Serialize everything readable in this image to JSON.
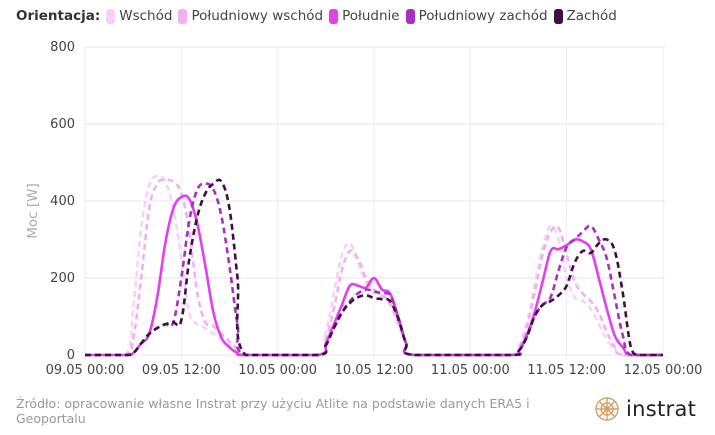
{
  "legend": {
    "title": "Orientacja:"
  },
  "chart_data": {
    "type": "line",
    "title": "",
    "xlabel": "",
    "ylabel": "Moc [W]",
    "ylim": [
      0,
      800
    ],
    "yticks": [
      "0",
      "200",
      "400",
      "600",
      "800"
    ],
    "xlim": [
      "09.05 00:00",
      "12.05 00:00"
    ],
    "xticks": [
      "09.05 00:00",
      "09.05 12:00",
      "10.05 00:00",
      "10.05 12:00",
      "11.05 00:00",
      "11.05 12:00",
      "12.05 00:00"
    ],
    "grid": true,
    "legend_position": "top-left",
    "series": [
      {
        "name": "Wschód",
        "color": "#f9d0f9",
        "dashed": true,
        "points": [
          [
            "09.05 00:00",
            0
          ],
          [
            "09.05 05:00",
            0
          ],
          [
            "09.05 06:00",
            120
          ],
          [
            "09.05 07:00",
            330
          ],
          [
            "09.05 08:00",
            440
          ],
          [
            "09.05 09:00",
            465
          ],
          [
            "09.05 10:00",
            450
          ],
          [
            "09.05 11:00",
            380
          ],
          [
            "09.05 12:00",
            250
          ],
          [
            "09.05 13:00",
            110
          ],
          [
            "09.05 14:00",
            80
          ],
          [
            "09.05 15:00",
            70
          ],
          [
            "09.05 16:00",
            55
          ],
          [
            "09.05 17:00",
            40
          ],
          [
            "09.05 18:00",
            25
          ],
          [
            "09.05 19:00",
            10
          ],
          [
            "09.05 20:00",
            0
          ],
          [
            "10.05 05:00",
            0
          ],
          [
            "10.05 06:00",
            60
          ],
          [
            "10.05 07:00",
            160
          ],
          [
            "10.05 08:00",
            260
          ],
          [
            "10.05 09:00",
            290
          ],
          [
            "10.05 10:00",
            240
          ],
          [
            "10.05 11:00",
            190
          ],
          [
            "10.05 12:00",
            165
          ],
          [
            "10.05 13:00",
            150
          ],
          [
            "10.05 14:00",
            130
          ],
          [
            "10.05 15:00",
            80
          ],
          [
            "10.05 16:00",
            30
          ],
          [
            "10.05 17:00",
            0
          ],
          [
            "11.05 05:00",
            0
          ],
          [
            "11.05 06:00",
            20
          ],
          [
            "11.05 07:00",
            80
          ],
          [
            "11.05 08:00",
            180
          ],
          [
            "11.05 09:00",
            280
          ],
          [
            "11.05 10:00",
            335
          ],
          [
            "11.05 11:00",
            300
          ],
          [
            "11.05 12:00",
            200
          ],
          [
            "11.05 13:00",
            150
          ],
          [
            "11.05 14:00",
            140
          ],
          [
            "11.05 15:00",
            120
          ],
          [
            "11.05 16:00",
            80
          ],
          [
            "11.05 17:00",
            40
          ],
          [
            "11.05 18:00",
            15
          ],
          [
            "11.05 19:00",
            0
          ],
          [
            "12.05 00:00",
            0
          ]
        ]
      },
      {
        "name": "Południowy wschód",
        "color": "#f2b0f2",
        "dashed": true,
        "points": [
          [
            "09.05 00:00",
            0
          ],
          [
            "09.05 05:00",
            0
          ],
          [
            "09.05 06:00",
            40
          ],
          [
            "09.05 07:00",
            200
          ],
          [
            "09.05 08:00",
            380
          ],
          [
            "09.05 09:00",
            445
          ],
          [
            "09.05 10:00",
            455
          ],
          [
            "09.05 11:00",
            450
          ],
          [
            "09.05 12:00",
            420
          ],
          [
            "09.05 13:00",
            320
          ],
          [
            "09.05 14:00",
            160
          ],
          [
            "09.05 15:00",
            85
          ],
          [
            "09.05 16:00",
            75
          ],
          [
            "09.05 17:00",
            55
          ],
          [
            "09.05 18:00",
            35
          ],
          [
            "09.05 19:00",
            15
          ],
          [
            "09.05 20:00",
            0
          ],
          [
            "10.05 05:00",
            0
          ],
          [
            "10.05 06:00",
            40
          ],
          [
            "10.05 07:00",
            120
          ],
          [
            "10.05 08:00",
            220
          ],
          [
            "10.05 09:00",
            270
          ],
          [
            "10.05 10:00",
            250
          ],
          [
            "10.05 11:00",
            200
          ],
          [
            "10.05 12:00",
            170
          ],
          [
            "10.05 13:00",
            155
          ],
          [
            "10.05 14:00",
            135
          ],
          [
            "10.05 15:00",
            85
          ],
          [
            "10.05 16:00",
            30
          ],
          [
            "10.05 17:00",
            0
          ],
          [
            "11.05 05:00",
            0
          ],
          [
            "11.05 06:00",
            15
          ],
          [
            "11.05 07:00",
            70
          ],
          [
            "11.05 08:00",
            160
          ],
          [
            "11.05 09:00",
            260
          ],
          [
            "11.05 10:00",
            320
          ],
          [
            "11.05 11:00",
            330
          ],
          [
            "11.05 12:00",
            260
          ],
          [
            "11.05 13:00",
            190
          ],
          [
            "11.05 14:00",
            160
          ],
          [
            "11.05 15:00",
            140
          ],
          [
            "11.05 16:00",
            110
          ],
          [
            "11.05 17:00",
            60
          ],
          [
            "11.05 18:00",
            20
          ],
          [
            "11.05 19:00",
            0
          ],
          [
            "12.05 00:00",
            0
          ]
        ]
      },
      {
        "name": "Południe",
        "color": "#e040f0",
        "dashed": false,
        "points": [
          [
            "09.05 00:00",
            0
          ],
          [
            "09.05 05:00",
            0
          ],
          [
            "09.05 06:00",
            5
          ],
          [
            "09.05 07:00",
            30
          ],
          [
            "09.05 08:00",
            55
          ],
          [
            "09.05 09:00",
            150
          ],
          [
            "09.05 10:00",
            290
          ],
          [
            "09.05 11:00",
            380
          ],
          [
            "09.05 12:00",
            410
          ],
          [
            "09.05 13:00",
            405
          ],
          [
            "09.05 14:00",
            340
          ],
          [
            "09.05 15:00",
            230
          ],
          [
            "09.05 16:00",
            110
          ],
          [
            "09.05 17:00",
            45
          ],
          [
            "09.05 18:00",
            20
          ],
          [
            "09.05 19:00",
            5
          ],
          [
            "09.05 20:00",
            0
          ],
          [
            "10.05 05:00",
            0
          ],
          [
            "10.05 06:00",
            30
          ],
          [
            "10.05 07:00",
            80
          ],
          [
            "10.05 08:00",
            130
          ],
          [
            "10.05 09:00",
            180
          ],
          [
            "10.05 10:00",
            180
          ],
          [
            "10.05 11:00",
            175
          ],
          [
            "10.05 12:00",
            200
          ],
          [
            "10.05 13:00",
            170
          ],
          [
            "10.05 14:00",
            160
          ],
          [
            "10.05 15:00",
            100
          ],
          [
            "10.05 16:00",
            30
          ],
          [
            "10.05 17:00",
            0
          ],
          [
            "11.05 05:00",
            0
          ],
          [
            "11.05 06:00",
            10
          ],
          [
            "11.05 07:00",
            50
          ],
          [
            "11.05 08:00",
            110
          ],
          [
            "11.05 09:00",
            190
          ],
          [
            "11.05 10:00",
            270
          ],
          [
            "11.05 11:00",
            275
          ],
          [
            "11.05 12:00",
            285
          ],
          [
            "11.05 13:00",
            300
          ],
          [
            "11.05 14:00",
            295
          ],
          [
            "11.05 15:00",
            275
          ],
          [
            "11.05 16:00",
            200
          ],
          [
            "11.05 17:00",
            120
          ],
          [
            "11.05 18:00",
            50
          ],
          [
            "11.05 19:00",
            20
          ],
          [
            "11.05 20:00",
            0
          ],
          [
            "12.05 00:00",
            0
          ]
        ]
      },
      {
        "name": "Południowy zachód",
        "color": "#a830c0",
        "dashed": true,
        "points": [
          [
            "09.05 00:00",
            0
          ],
          [
            "09.05 05:00",
            0
          ],
          [
            "09.05 06:00",
            5
          ],
          [
            "09.05 07:00",
            30
          ],
          [
            "09.05 08:00",
            55
          ],
          [
            "09.05 09:00",
            70
          ],
          [
            "09.05 10:00",
            80
          ],
          [
            "09.05 11:00",
            85
          ],
          [
            "09.05 12:00",
            200
          ],
          [
            "09.05 13:00",
            350
          ],
          [
            "09.05 14:00",
            430
          ],
          [
            "09.05 15:00",
            445
          ],
          [
            "09.05 16:00",
            430
          ],
          [
            "09.05 17:00",
            360
          ],
          [
            "09.05 18:00",
            230
          ],
          [
            "09.05 19:00",
            80
          ],
          [
            "09.05 20:00",
            0
          ],
          [
            "10.05 05:00",
            0
          ],
          [
            "10.05 06:00",
            25
          ],
          [
            "10.05 07:00",
            70
          ],
          [
            "10.05 08:00",
            110
          ],
          [
            "10.05 09:00",
            140
          ],
          [
            "10.05 10:00",
            160
          ],
          [
            "10.05 11:00",
            170
          ],
          [
            "10.05 12:00",
            165
          ],
          [
            "10.05 13:00",
            160
          ],
          [
            "10.05 14:00",
            155
          ],
          [
            "10.05 15:00",
            100
          ],
          [
            "10.05 16:00",
            30
          ],
          [
            "10.05 17:00",
            0
          ],
          [
            "11.05 05:00",
            0
          ],
          [
            "11.05 06:00",
            10
          ],
          [
            "11.05 07:00",
            45
          ],
          [
            "11.05 08:00",
            100
          ],
          [
            "11.05 09:00",
            130
          ],
          [
            "11.05 10:00",
            150
          ],
          [
            "11.05 11:00",
            220
          ],
          [
            "11.05 12:00",
            280
          ],
          [
            "11.05 13:00",
            300
          ],
          [
            "11.05 14:00",
            320
          ],
          [
            "11.05 15:00",
            335
          ],
          [
            "11.05 16:00",
            300
          ],
          [
            "11.05 17:00",
            250
          ],
          [
            "11.05 18:00",
            150
          ],
          [
            "11.05 19:00",
            50
          ],
          [
            "11.05 20:00",
            0
          ],
          [
            "12.05 00:00",
            0
          ]
        ]
      },
      {
        "name": "Zachód",
        "color": "#3d1040",
        "dashed": true,
        "points": [
          [
            "09.05 00:00",
            0
          ],
          [
            "09.05 05:00",
            0
          ],
          [
            "09.05 06:00",
            5
          ],
          [
            "09.05 07:00",
            30
          ],
          [
            "09.05 08:00",
            55
          ],
          [
            "09.05 09:00",
            70
          ],
          [
            "09.05 10:00",
            80
          ],
          [
            "09.05 11:00",
            85
          ],
          [
            "09.05 12:00",
            90
          ],
          [
            "09.05 13:00",
            250
          ],
          [
            "09.05 14:00",
            360
          ],
          [
            "09.05 15:00",
            420
          ],
          [
            "09.05 16:00",
            445
          ],
          [
            "09.05 17:00",
            450
          ],
          [
            "09.05 18:00",
            380
          ],
          [
            "09.05 19:00",
            200
          ],
          [
            "09.05 20:00",
            0
          ],
          [
            "10.05 05:00",
            0
          ],
          [
            "10.05 06:00",
            25
          ],
          [
            "10.05 07:00",
            70
          ],
          [
            "10.05 08:00",
            110
          ],
          [
            "10.05 09:00",
            135
          ],
          [
            "10.05 10:00",
            150
          ],
          [
            "10.05 11:00",
            155
          ],
          [
            "10.05 12:00",
            148
          ],
          [
            "10.05 13:00",
            145
          ],
          [
            "10.05 14:00",
            140
          ],
          [
            "10.05 15:00",
            95
          ],
          [
            "10.05 16:00",
            30
          ],
          [
            "10.05 17:00",
            0
          ],
          [
            "11.05 05:00",
            0
          ],
          [
            "11.05 06:00",
            10
          ],
          [
            "11.05 07:00",
            45
          ],
          [
            "11.05 08:00",
            100
          ],
          [
            "11.05 09:00",
            130
          ],
          [
            "11.05 10:00",
            140
          ],
          [
            "11.05 11:00",
            155
          ],
          [
            "11.05 12:00",
            180
          ],
          [
            "11.05 13:00",
            240
          ],
          [
            "11.05 14:00",
            270
          ],
          [
            "11.05 15:00",
            265
          ],
          [
            "11.05 16:00",
            290
          ],
          [
            "11.05 17:00",
            300
          ],
          [
            "11.05 18:00",
            270
          ],
          [
            "11.05 19:00",
            160
          ],
          [
            "11.05 20:00",
            20
          ],
          [
            "11.05 21:00",
            0
          ],
          [
            "12.05 00:00",
            0
          ]
        ]
      }
    ]
  },
  "source": "Źródło: opracowanie własne Instrat przy użyciu Atlite na podstawie danych ERA5 i Geoportalu",
  "logo": {
    "text": "instrat",
    "color": "#d9a066"
  }
}
